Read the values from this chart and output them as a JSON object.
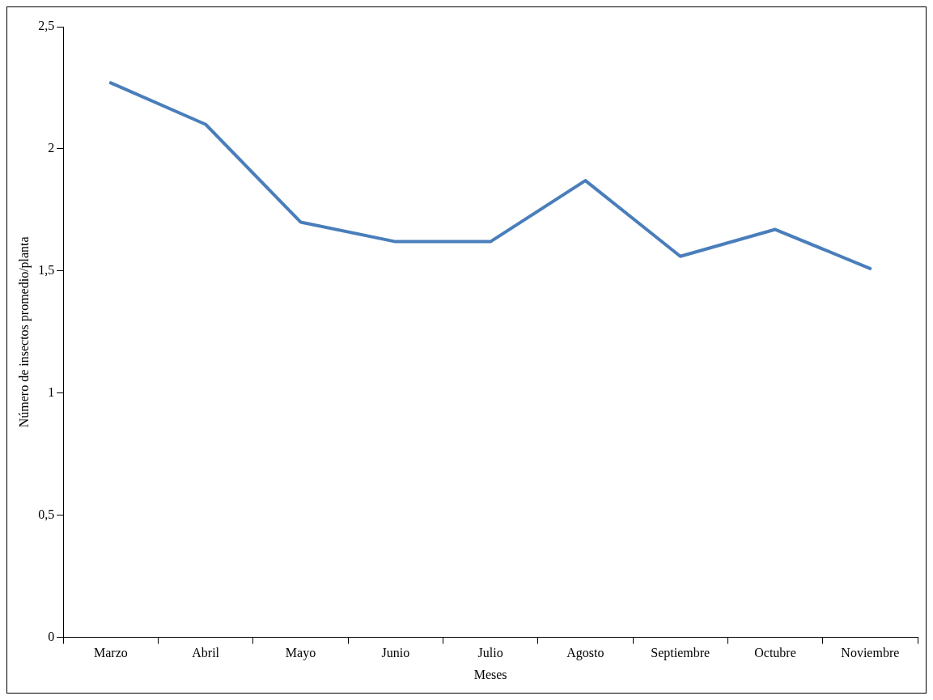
{
  "chart_data": {
    "type": "line",
    "xlabel": "Meses",
    "ylabel": "Número de insectos promedio/planta",
    "categories": [
      "Marzo",
      "Abril",
      "Mayo",
      "Junio",
      "Julio",
      "Agosto",
      "Septiembre",
      "Octubre",
      "Noviembre"
    ],
    "series": [
      {
        "color": "#4a7ebb",
        "values": [
          2.27,
          2.1,
          1.7,
          1.62,
          1.62,
          1.87,
          1.56,
          1.67,
          1.51
        ]
      }
    ],
    "ylim": [
      0,
      2.5
    ],
    "yticks": [
      0,
      {
        "value": 0.5,
        "label": "0,5"
      },
      1,
      {
        "value": 1.5,
        "label": "1,5"
      },
      2,
      {
        "value": 2.5,
        "label": "2,5"
      }
    ],
    "marker": "none"
  }
}
